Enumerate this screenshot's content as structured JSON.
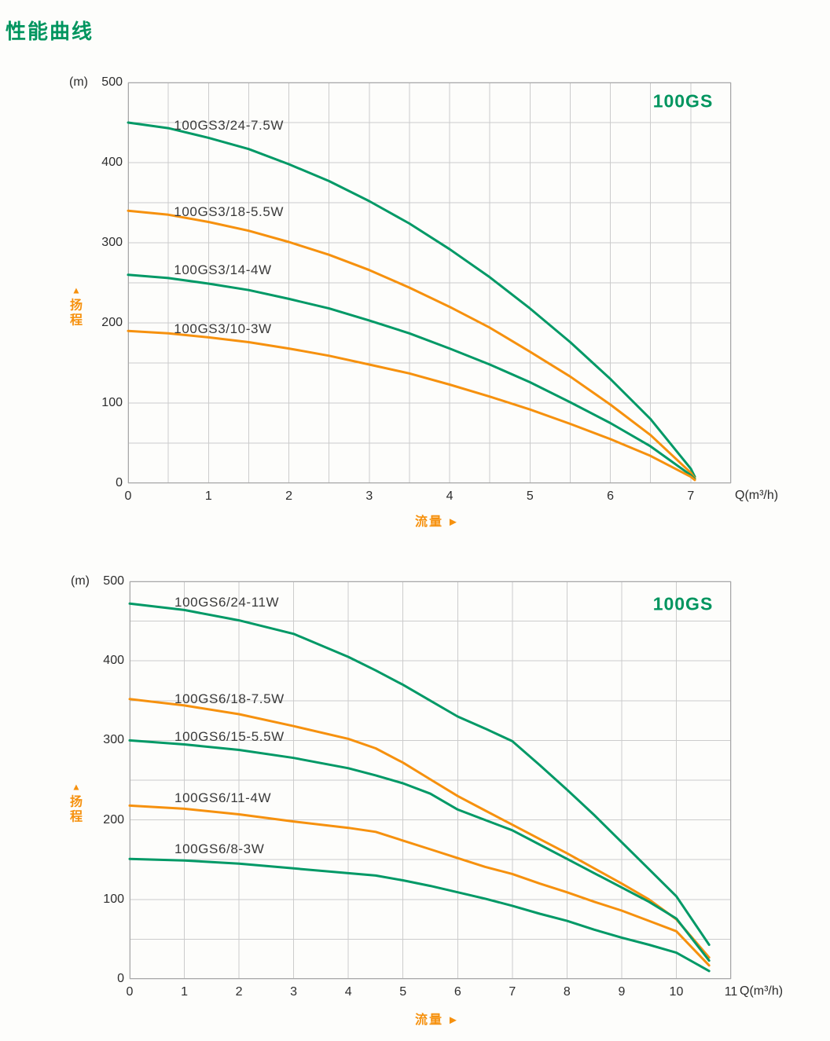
{
  "page": {
    "title": "性能曲线"
  },
  "colors": {
    "green": "#009966",
    "orange": "#F6910E",
    "title_green": "#00955F",
    "grid": "#cccccc",
    "frame": "#a8a8a8",
    "tick_text": "#2d2d2d",
    "curve_label_text": "#3a3a3a"
  },
  "chart_data": [
    {
      "type": "line",
      "title": "100GS",
      "y_unit": "(m)",
      "x_unit": "Q(m³/h)",
      "x_axis_label": "流量",
      "y_axis_label": "扬程",
      "y_axis_marker": "▲",
      "x_ticks": [
        0,
        1,
        2,
        3,
        4,
        5,
        6,
        7
      ],
      "y_ticks": [
        0,
        100,
        200,
        300,
        400,
        500
      ],
      "x_range": [
        0,
        7.5
      ],
      "y_range": [
        0,
        500
      ],
      "grid_x_step": 0.5,
      "grid_y_step": 50,
      "legend_position": "labels-on-curves",
      "grid": true,
      "series": [
        {
          "name": "100GS3/24-7.5W",
          "color": "green",
          "label_anchor": [
            0.57,
            446
          ],
          "points": [
            [
              0,
              450
            ],
            [
              0.5,
              443
            ],
            [
              1,
              431
            ],
            [
              1.5,
              417
            ],
            [
              2,
              398
            ],
            [
              2.5,
              377
            ],
            [
              3,
              352
            ],
            [
              3.5,
              324
            ],
            [
              4,
              292
            ],
            [
              4.5,
              257
            ],
            [
              5,
              218
            ],
            [
              5.5,
              176
            ],
            [
              6,
              130
            ],
            [
              6.5,
              80
            ],
            [
              7,
              18
            ],
            [
              7.05,
              8
            ]
          ]
        },
        {
          "name": "100GS3/18-5.5W",
          "color": "orange",
          "label_anchor": [
            0.57,
            338
          ],
          "points": [
            [
              0,
              340
            ],
            [
              0.5,
              335
            ],
            [
              1,
              326
            ],
            [
              1.5,
              315
            ],
            [
              2,
              301
            ],
            [
              2.5,
              285
            ],
            [
              3,
              266
            ],
            [
              3.5,
              244
            ],
            [
              4,
              220
            ],
            [
              4.5,
              194
            ],
            [
              5,
              164
            ],
            [
              5.5,
              133
            ],
            [
              6,
              98
            ],
            [
              6.5,
              60
            ],
            [
              7,
              13
            ],
            [
              7.05,
              6
            ]
          ]
        },
        {
          "name": "100GS3/14-4W",
          "color": "green",
          "label_anchor": [
            0.57,
            266
          ],
          "points": [
            [
              0,
              260
            ],
            [
              0.5,
              256
            ],
            [
              1,
              249
            ],
            [
              1.5,
              241
            ],
            [
              2,
              230
            ],
            [
              2.5,
              218
            ],
            [
              3,
              203
            ],
            [
              3.5,
              187
            ],
            [
              4,
              168
            ],
            [
              4.5,
              148
            ],
            [
              5,
              126
            ],
            [
              5.5,
              101
            ],
            [
              6,
              75
            ],
            [
              6.5,
              46
            ],
            [
              7,
              10
            ],
            [
              7.05,
              5
            ]
          ]
        },
        {
          "name": "100GS3/10-3W",
          "color": "orange",
          "label_anchor": [
            0.57,
            192
          ],
          "points": [
            [
              0,
              190
            ],
            [
              0.5,
              187
            ],
            [
              1,
              182
            ],
            [
              1.5,
              176
            ],
            [
              2,
              168
            ],
            [
              2.5,
              159
            ],
            [
              3,
              148
            ],
            [
              3.5,
              137
            ],
            [
              4,
              123
            ],
            [
              4.5,
              108
            ],
            [
              5,
              92
            ],
            [
              5.5,
              74
            ],
            [
              6,
              55
            ],
            [
              6.5,
              34
            ],
            [
              7,
              8
            ],
            [
              7.05,
              4
            ]
          ]
        }
      ]
    },
    {
      "type": "line",
      "title": "100GS",
      "y_unit": "(m)",
      "x_unit": "Q(m³/h)",
      "x_axis_label": "流量",
      "y_axis_label": "扬程",
      "y_axis_marker": "▲",
      "x_ticks": [
        0,
        1,
        2,
        3,
        4,
        5,
        6,
        7,
        8,
        9,
        10,
        11
      ],
      "y_ticks": [
        0,
        100,
        200,
        300,
        400,
        500
      ],
      "x_range": [
        0,
        11
      ],
      "y_range": [
        0,
        500
      ],
      "grid_x_step": 1,
      "grid_y_step": 50,
      "legend_position": "labels-on-curves",
      "grid": true,
      "series": [
        {
          "name": "100GS6/24-11W",
          "color": "green",
          "label_anchor": [
            0.82,
            473
          ],
          "points": [
            [
              0,
              472
            ],
            [
              1,
              464
            ],
            [
              2,
              451
            ],
            [
              3,
              434
            ],
            [
              4,
              405
            ],
            [
              4.5,
              388
            ],
            [
              5,
              370
            ],
            [
              5.5,
              350
            ],
            [
              6,
              330
            ],
            [
              6.5,
              315
            ],
            [
              7,
              299
            ],
            [
              7.5,
              269
            ],
            [
              8,
              238
            ],
            [
              8.5,
              206
            ],
            [
              9,
              172
            ],
            [
              9.5,
              138
            ],
            [
              10,
              104
            ],
            [
              10.6,
              43
            ]
          ]
        },
        {
          "name": "100GS6/18-7.5W",
          "color": "orange",
          "label_anchor": [
            0.82,
            352
          ],
          "points": [
            [
              0,
              352
            ],
            [
              1,
              344
            ],
            [
              2,
              333
            ],
            [
              3,
              318
            ],
            [
              4,
              302
            ],
            [
              4.5,
              290
            ],
            [
              5,
              272
            ],
            [
              5.5,
              251
            ],
            [
              6,
              230
            ],
            [
              6.5,
              212
            ],
            [
              7,
              194
            ],
            [
              7.5,
              176
            ],
            [
              8,
              158
            ],
            [
              8.5,
              139
            ],
            [
              9,
              120
            ],
            [
              9.5,
              100
            ],
            [
              10,
              75
            ],
            [
              10.6,
              27
            ]
          ]
        },
        {
          "name": "100GS6/15-5.5W",
          "color": "green",
          "label_anchor": [
            0.82,
            304
          ],
          "points": [
            [
              0,
              300
            ],
            [
              1,
              295
            ],
            [
              2,
              288
            ],
            [
              3,
              278
            ],
            [
              4,
              265
            ],
            [
              4.5,
              256
            ],
            [
              5,
              246
            ],
            [
              5.5,
              233
            ],
            [
              6,
              213
            ],
            [
              6.5,
              200
            ],
            [
              7,
              187
            ],
            [
              7.5,
              169
            ],
            [
              8,
              151
            ],
            [
              8.5,
              133
            ],
            [
              9,
              115
            ],
            [
              9.5,
              97
            ],
            [
              10,
              76
            ],
            [
              10.6,
              23
            ]
          ]
        },
        {
          "name": "100GS6/11-4W",
          "color": "orange",
          "label_anchor": [
            0.82,
            227
          ],
          "points": [
            [
              0,
              218
            ],
            [
              1,
              214
            ],
            [
              2,
              207
            ],
            [
              3,
              198
            ],
            [
              4,
              190
            ],
            [
              4.5,
              185
            ],
            [
              5,
              174
            ],
            [
              5.5,
              163
            ],
            [
              6,
              152
            ],
            [
              6.5,
              141
            ],
            [
              7,
              132
            ],
            [
              7.5,
              120
            ],
            [
              8,
              109
            ],
            [
              8.5,
              97
            ],
            [
              9,
              86
            ],
            [
              9.5,
              73
            ],
            [
              10,
              60
            ],
            [
              10.6,
              17
            ]
          ]
        },
        {
          "name": "100GS6/8-3W",
          "color": "green",
          "label_anchor": [
            0.82,
            163
          ],
          "points": [
            [
              0,
              151
            ],
            [
              1,
              149
            ],
            [
              2,
              145
            ],
            [
              3,
              139
            ],
            [
              4,
              133
            ],
            [
              4.5,
              130
            ],
            [
              5,
              124
            ],
            [
              5.5,
              117
            ],
            [
              6,
              109
            ],
            [
              6.5,
              101
            ],
            [
              7,
              92
            ],
            [
              7.5,
              82
            ],
            [
              8,
              73
            ],
            [
              8.5,
              62
            ],
            [
              9,
              52
            ],
            [
              9.5,
              43
            ],
            [
              10,
              33
            ],
            [
              10.6,
              10
            ]
          ]
        }
      ]
    }
  ]
}
